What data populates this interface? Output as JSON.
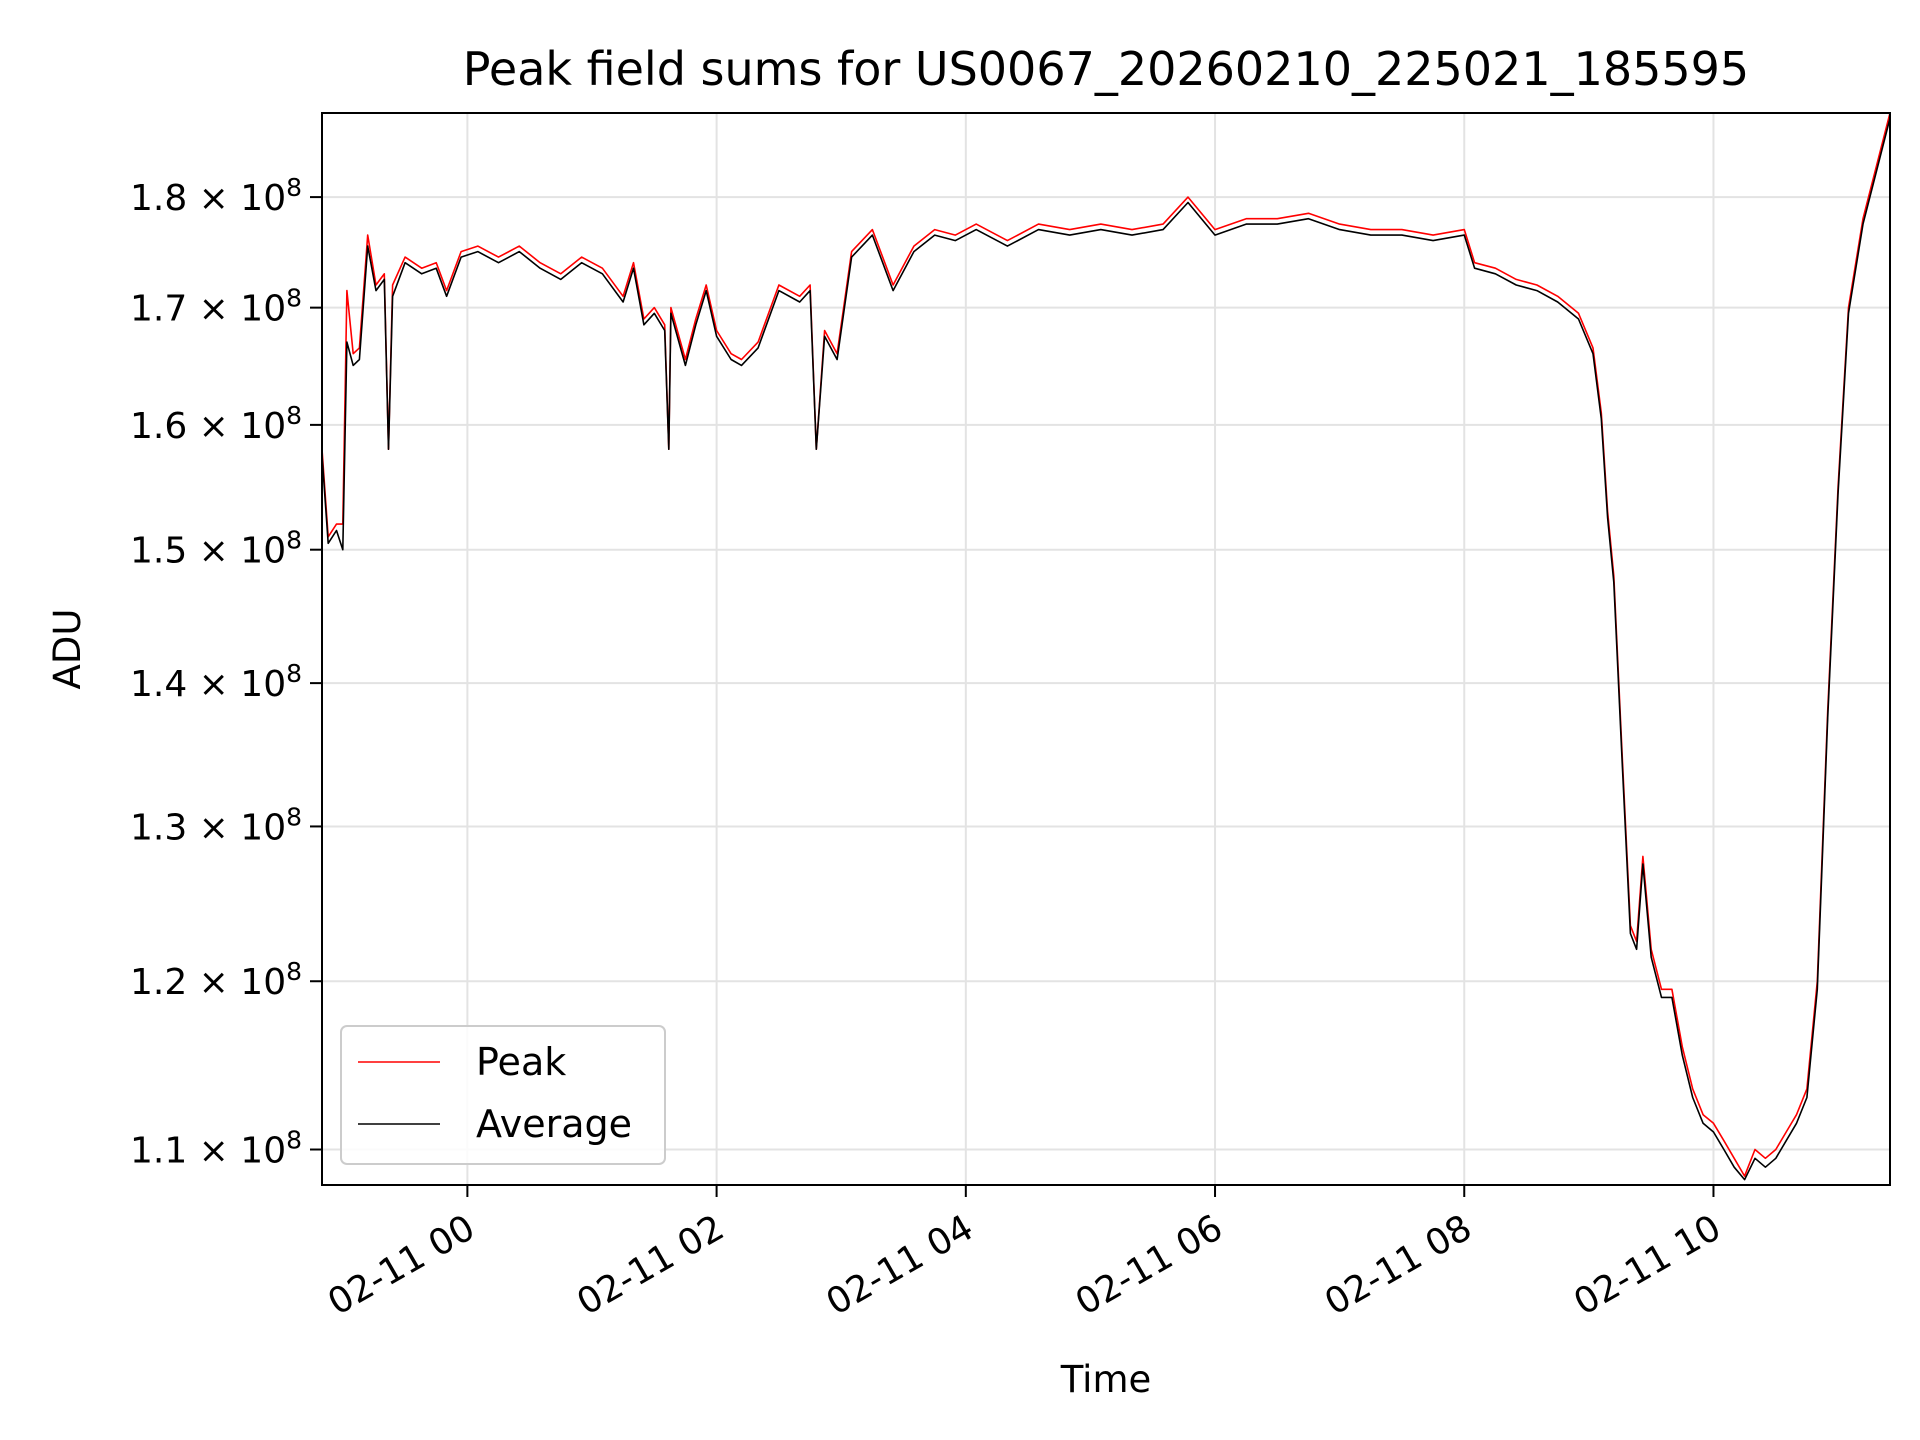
{
  "chart_data": {
    "type": "line",
    "title": "Peak field sums for US0067_20260210_225021_185595",
    "xlabel": "Time",
    "ylabel": "ADU",
    "x_range": [
      "2026-02-10 22:50",
      "2026-02-11 11:25"
    ],
    "x_ticks": [
      {
        "value": "2026-02-11 00:00",
        "label": "02-11 00"
      },
      {
        "value": "2026-02-11 02:00",
        "label": "02-11 02"
      },
      {
        "value": "2026-02-11 04:00",
        "label": "02-11 04"
      },
      {
        "value": "2026-02-11 06:00",
        "label": "02-11 06"
      },
      {
        "value": "2026-02-11 08:00",
        "label": "02-11 08"
      },
      {
        "value": "2026-02-11 10:00",
        "label": "02-11 10"
      }
    ],
    "y_scale": "log",
    "ylim": [
      108000000,
      188000000
    ],
    "y_ticks": [
      {
        "value": 110000000,
        "mantissa": "1.1",
        "exponent": "8"
      },
      {
        "value": 120000000,
        "mantissa": "1.2",
        "exponent": "8"
      },
      {
        "value": 130000000,
        "mantissa": "1.3",
        "exponent": "8"
      },
      {
        "value": 140000000,
        "mantissa": "1.4",
        "exponent": "8"
      },
      {
        "value": 150000000,
        "mantissa": "1.5",
        "exponent": "8"
      },
      {
        "value": 160000000,
        "mantissa": "1.6",
        "exponent": "8"
      },
      {
        "value": 170000000,
        "mantissa": "1.7",
        "exponent": "8"
      },
      {
        "value": 180000000,
        "mantissa": "1.8",
        "exponent": "8"
      }
    ],
    "grid": true,
    "legend_position": "lower-left",
    "series": [
      {
        "name": "Peak",
        "color": "#ff0000",
        "points": [
          [
            "2026-02-10 22:50",
            158000000
          ],
          [
            "2026-02-10 22:53",
            151000000
          ],
          [
            "2026-02-10 22:57",
            152000000
          ],
          [
            "2026-02-10 23:00",
            152000000
          ],
          [
            "2026-02-10 23:02",
            171500000
          ],
          [
            "2026-02-10 23:05",
            166000000
          ],
          [
            "2026-02-10 23:08",
            166500000
          ],
          [
            "2026-02-10 23:12",
            176500000
          ],
          [
            "2026-02-10 23:16",
            172000000
          ],
          [
            "2026-02-10 23:20",
            173000000
          ],
          [
            "2026-02-10 23:22",
            158000000
          ],
          [
            "2026-02-10 23:24",
            172000000
          ],
          [
            "2026-02-10 23:30",
            174500000
          ],
          [
            "2026-02-10 23:38",
            173500000
          ],
          [
            "2026-02-10 23:45",
            174000000
          ],
          [
            "2026-02-10 23:50",
            171500000
          ],
          [
            "2026-02-10 23:57",
            175000000
          ],
          [
            "2026-02-11 00:05",
            175500000
          ],
          [
            "2026-02-11 00:15",
            174500000
          ],
          [
            "2026-02-11 00:25",
            175500000
          ],
          [
            "2026-02-11 00:35",
            174000000
          ],
          [
            "2026-02-11 00:45",
            173000000
          ],
          [
            "2026-02-11 00:55",
            174500000
          ],
          [
            "2026-02-11 01:05",
            173500000
          ],
          [
            "2026-02-11 01:15",
            171000000
          ],
          [
            "2026-02-11 01:20",
            174000000
          ],
          [
            "2026-02-11 01:25",
            169000000
          ],
          [
            "2026-02-11 01:30",
            170000000
          ],
          [
            "2026-02-11 01:35",
            168500000
          ],
          [
            "2026-02-11 01:37",
            158000000
          ],
          [
            "2026-02-11 01:38",
            170000000
          ],
          [
            "2026-02-11 01:45",
            165500000
          ],
          [
            "2026-02-11 01:50",
            169000000
          ],
          [
            "2026-02-11 01:55",
            172000000
          ],
          [
            "2026-02-11 02:00",
            168000000
          ],
          [
            "2026-02-11 02:07",
            166000000
          ],
          [
            "2026-02-11 02:12",
            165500000
          ],
          [
            "2026-02-11 02:20",
            167000000
          ],
          [
            "2026-02-11 02:30",
            172000000
          ],
          [
            "2026-02-11 02:40",
            171000000
          ],
          [
            "2026-02-11 02:45",
            172000000
          ],
          [
            "2026-02-11 02:48",
            158000000
          ],
          [
            "2026-02-11 02:52",
            168000000
          ],
          [
            "2026-02-11 02:58",
            166000000
          ],
          [
            "2026-02-11 03:05",
            175000000
          ],
          [
            "2026-02-11 03:15",
            177000000
          ],
          [
            "2026-02-11 03:25",
            172000000
          ],
          [
            "2026-02-11 03:35",
            175500000
          ],
          [
            "2026-02-11 03:45",
            177000000
          ],
          [
            "2026-02-11 03:55",
            176500000
          ],
          [
            "2026-02-11 04:05",
            177500000
          ],
          [
            "2026-02-11 04:20",
            176000000
          ],
          [
            "2026-02-11 04:35",
            177500000
          ],
          [
            "2026-02-11 04:50",
            177000000
          ],
          [
            "2026-02-11 05:05",
            177500000
          ],
          [
            "2026-02-11 05:20",
            177000000
          ],
          [
            "2026-02-11 05:35",
            177500000
          ],
          [
            "2026-02-11 05:47",
            180000000
          ],
          [
            "2026-02-11 06:00",
            177000000
          ],
          [
            "2026-02-11 06:15",
            178000000
          ],
          [
            "2026-02-11 06:30",
            178000000
          ],
          [
            "2026-02-11 06:45",
            178500000
          ],
          [
            "2026-02-11 07:00",
            177500000
          ],
          [
            "2026-02-11 07:15",
            177000000
          ],
          [
            "2026-02-11 07:30",
            177000000
          ],
          [
            "2026-02-11 07:45",
            176500000
          ],
          [
            "2026-02-11 08:00",
            177000000
          ],
          [
            "2026-02-11 08:05",
            174000000
          ],
          [
            "2026-02-11 08:15",
            173500000
          ],
          [
            "2026-02-11 08:25",
            172500000
          ],
          [
            "2026-02-11 08:35",
            172000000
          ],
          [
            "2026-02-11 08:45",
            171000000
          ],
          [
            "2026-02-11 08:55",
            169500000
          ],
          [
            "2026-02-11 09:02",
            166500000
          ],
          [
            "2026-02-11 09:06",
            161000000
          ],
          [
            "2026-02-11 09:09",
            153000000
          ],
          [
            "2026-02-11 09:12",
            148000000
          ],
          [
            "2026-02-11 09:16",
            135000000
          ],
          [
            "2026-02-11 09:20",
            123500000
          ],
          [
            "2026-02-11 09:23",
            122500000
          ],
          [
            "2026-02-11 09:26",
            128000000
          ],
          [
            "2026-02-11 09:30",
            122000000
          ],
          [
            "2026-02-11 09:35",
            119500000
          ],
          [
            "2026-02-11 09:40",
            119500000
          ],
          [
            "2026-02-11 09:45",
            116000000
          ],
          [
            "2026-02-11 09:50",
            113500000
          ],
          [
            "2026-02-11 09:55",
            112000000
          ],
          [
            "2026-02-11 10:00",
            111500000
          ],
          [
            "2026-02-11 10:05",
            110500000
          ],
          [
            "2026-02-11 10:10",
            109500000
          ],
          [
            "2026-02-11 10:15",
            108500000
          ],
          [
            "2026-02-11 10:20",
            110000000
          ],
          [
            "2026-02-11 10:25",
            109500000
          ],
          [
            "2026-02-11 10:30",
            110000000
          ],
          [
            "2026-02-11 10:35",
            111000000
          ],
          [
            "2026-02-11 10:40",
            112000000
          ],
          [
            "2026-02-11 10:45",
            113500000
          ],
          [
            "2026-02-11 10:50",
            120000000
          ],
          [
            "2026-02-11 10:55",
            138000000
          ],
          [
            "2026-02-11 11:00",
            155000000
          ],
          [
            "2026-02-11 11:05",
            170000000
          ],
          [
            "2026-02-11 11:12",
            178000000
          ],
          [
            "2026-02-11 11:25",
            188000000
          ]
        ]
      },
      {
        "name": "Average",
        "color": "#000000",
        "points": [
          [
            "2026-02-10 22:50",
            157500000
          ],
          [
            "2026-02-10 22:53",
            150500000
          ],
          [
            "2026-02-10 22:57",
            151500000
          ],
          [
            "2026-02-10 23:00",
            150000000
          ],
          [
            "2026-02-10 23:02",
            167000000
          ],
          [
            "2026-02-10 23:05",
            165000000
          ],
          [
            "2026-02-10 23:08",
            165500000
          ],
          [
            "2026-02-10 23:12",
            175500000
          ],
          [
            "2026-02-10 23:16",
            171500000
          ],
          [
            "2026-02-10 23:20",
            172500000
          ],
          [
            "2026-02-10 23:22",
            158000000
          ],
          [
            "2026-02-10 23:24",
            171000000
          ],
          [
            "2026-02-10 23:30",
            174000000
          ],
          [
            "2026-02-10 23:38",
            173000000
          ],
          [
            "2026-02-10 23:45",
            173500000
          ],
          [
            "2026-02-10 23:50",
            171000000
          ],
          [
            "2026-02-10 23:57",
            174500000
          ],
          [
            "2026-02-11 00:05",
            175000000
          ],
          [
            "2026-02-11 00:15",
            174000000
          ],
          [
            "2026-02-11 00:25",
            175000000
          ],
          [
            "2026-02-11 00:35",
            173500000
          ],
          [
            "2026-02-11 00:45",
            172500000
          ],
          [
            "2026-02-11 00:55",
            174000000
          ],
          [
            "2026-02-11 01:05",
            173000000
          ],
          [
            "2026-02-11 01:15",
            170500000
          ],
          [
            "2026-02-11 01:20",
            173500000
          ],
          [
            "2026-02-11 01:25",
            168500000
          ],
          [
            "2026-02-11 01:30",
            169500000
          ],
          [
            "2026-02-11 01:35",
            168000000
          ],
          [
            "2026-02-11 01:37",
            158000000
          ],
          [
            "2026-02-11 01:38",
            169500000
          ],
          [
            "2026-02-11 01:45",
            165000000
          ],
          [
            "2026-02-11 01:50",
            168500000
          ],
          [
            "2026-02-11 01:55",
            171500000
          ],
          [
            "2026-02-11 02:00",
            167500000
          ],
          [
            "2026-02-11 02:07",
            165500000
          ],
          [
            "2026-02-11 02:12",
            165000000
          ],
          [
            "2026-02-11 02:20",
            166500000
          ],
          [
            "2026-02-11 02:30",
            171500000
          ],
          [
            "2026-02-11 02:40",
            170500000
          ],
          [
            "2026-02-11 02:45",
            171500000
          ],
          [
            "2026-02-11 02:48",
            158000000
          ],
          [
            "2026-02-11 02:52",
            167500000
          ],
          [
            "2026-02-11 02:58",
            165500000
          ],
          [
            "2026-02-11 03:05",
            174500000
          ],
          [
            "2026-02-11 03:15",
            176500000
          ],
          [
            "2026-02-11 03:25",
            171500000
          ],
          [
            "2026-02-11 03:35",
            175000000
          ],
          [
            "2026-02-11 03:45",
            176500000
          ],
          [
            "2026-02-11 03:55",
            176000000
          ],
          [
            "2026-02-11 04:05",
            177000000
          ],
          [
            "2026-02-11 04:20",
            175500000
          ],
          [
            "2026-02-11 04:35",
            177000000
          ],
          [
            "2026-02-11 04:50",
            176500000
          ],
          [
            "2026-02-11 05:05",
            177000000
          ],
          [
            "2026-02-11 05:20",
            176500000
          ],
          [
            "2026-02-11 05:35",
            177000000
          ],
          [
            "2026-02-11 05:47",
            179500000
          ],
          [
            "2026-02-11 06:00",
            176500000
          ],
          [
            "2026-02-11 06:15",
            177500000
          ],
          [
            "2026-02-11 06:30",
            177500000
          ],
          [
            "2026-02-11 06:45",
            178000000
          ],
          [
            "2026-02-11 07:00",
            177000000
          ],
          [
            "2026-02-11 07:15",
            176500000
          ],
          [
            "2026-02-11 07:30",
            176500000
          ],
          [
            "2026-02-11 07:45",
            176000000
          ],
          [
            "2026-02-11 08:00",
            176500000
          ],
          [
            "2026-02-11 08:05",
            173500000
          ],
          [
            "2026-02-11 08:15",
            173000000
          ],
          [
            "2026-02-11 08:25",
            172000000
          ],
          [
            "2026-02-11 08:35",
            171500000
          ],
          [
            "2026-02-11 08:45",
            170500000
          ],
          [
            "2026-02-11 08:55",
            169000000
          ],
          [
            "2026-02-11 09:02",
            166000000
          ],
          [
            "2026-02-11 09:06",
            160500000
          ],
          [
            "2026-02-11 09:09",
            152500000
          ],
          [
            "2026-02-11 09:12",
            147500000
          ],
          [
            "2026-02-11 09:16",
            134500000
          ],
          [
            "2026-02-11 09:20",
            123000000
          ],
          [
            "2026-02-11 09:23",
            122000000
          ],
          [
            "2026-02-11 09:26",
            127500000
          ],
          [
            "2026-02-11 09:30",
            121500000
          ],
          [
            "2026-02-11 09:35",
            119000000
          ],
          [
            "2026-02-11 09:40",
            119000000
          ],
          [
            "2026-02-11 09:45",
            115500000
          ],
          [
            "2026-02-11 09:50",
            113000000
          ],
          [
            "2026-02-11 09:55",
            111500000
          ],
          [
            "2026-02-11 10:00",
            111000000
          ],
          [
            "2026-02-11 10:05",
            110000000
          ],
          [
            "2026-02-11 10:10",
            109000000
          ],
          [
            "2026-02-11 10:15",
            108300000
          ],
          [
            "2026-02-11 10:20",
            109500000
          ],
          [
            "2026-02-11 10:25",
            109000000
          ],
          [
            "2026-02-11 10:30",
            109500000
          ],
          [
            "2026-02-11 10:35",
            110500000
          ],
          [
            "2026-02-11 10:40",
            111500000
          ],
          [
            "2026-02-11 10:45",
            113000000
          ],
          [
            "2026-02-11 10:50",
            119500000
          ],
          [
            "2026-02-11 10:55",
            137500000
          ],
          [
            "2026-02-11 11:00",
            154500000
          ],
          [
            "2026-02-11 11:05",
            169500000
          ],
          [
            "2026-02-11 11:12",
            177500000
          ],
          [
            "2026-02-11 11:25",
            187500000
          ]
        ]
      }
    ]
  }
}
